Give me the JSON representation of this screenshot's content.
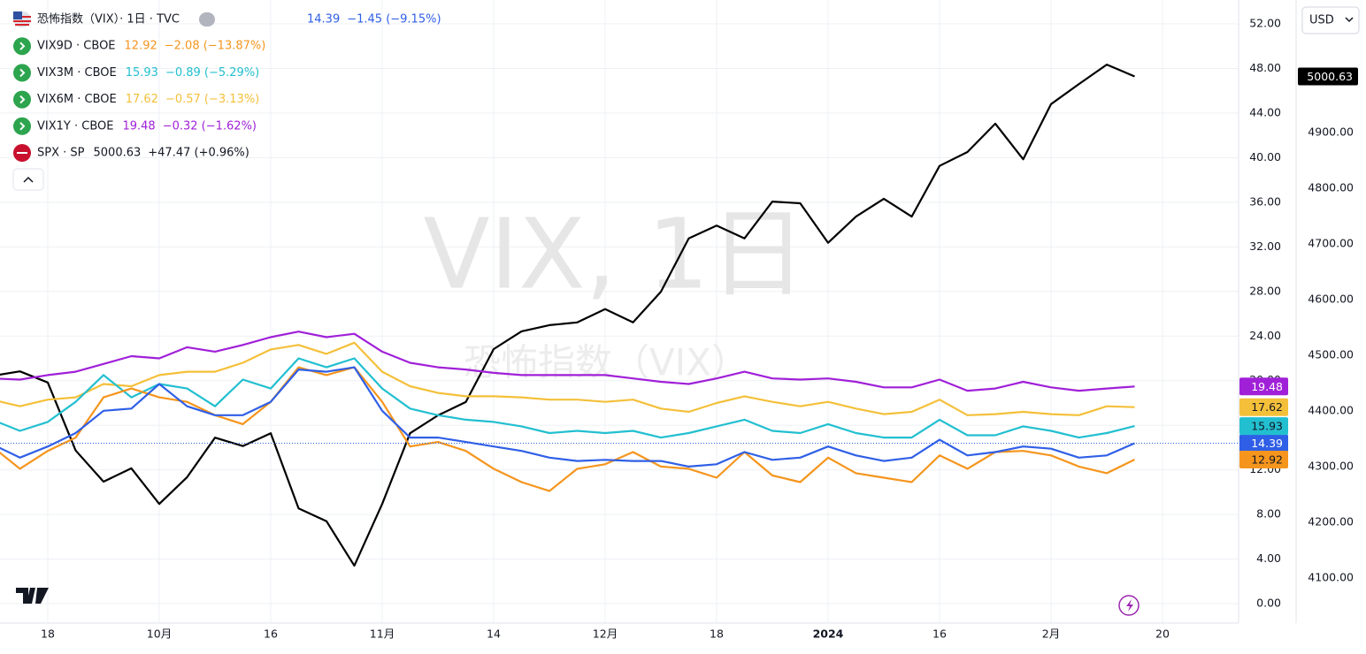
{
  "chart_data": {
    "type": "line",
    "watermark": "VIX, 1日",
    "watermark_subtitle": "恐怖指数（VIX）",
    "currency": "USD",
    "categories": [
      null,
      null,
      "18",
      null,
      null,
      null,
      "10月",
      null,
      null,
      null,
      "16",
      null,
      null,
      null,
      "11月",
      null,
      null,
      null,
      "14",
      null,
      null,
      null,
      "12月",
      null,
      null,
      null,
      "18",
      null,
      null,
      null,
      "2024",
      null,
      null,
      null,
      "16",
      null,
      null,
      null,
      "2月",
      null,
      null,
      null,
      "20"
    ],
    "ylim": [
      -1.74,
      54.14
    ],
    "yticks": [
      {
        "value": 0,
        "label": "0.00"
      },
      {
        "value": 4,
        "label": "4.00"
      },
      {
        "value": 8,
        "label": "8.00"
      },
      {
        "value": 12,
        "label": "12.00"
      },
      {
        "value": 16,
        "label": "16.00"
      },
      {
        "value": 20,
        "label": "20.00"
      },
      {
        "value": 24,
        "label": "24.00"
      },
      {
        "value": 28,
        "label": "28.00"
      },
      {
        "value": 32,
        "label": "32.00"
      },
      {
        "value": 36,
        "label": "36.00"
      },
      {
        "value": 40,
        "label": "40.00"
      },
      {
        "value": 44,
        "label": "44.00"
      },
      {
        "value": 48,
        "label": "48.00"
      },
      {
        "value": 52,
        "label": "52.00"
      }
    ],
    "y2lim": [
      4019,
      5138
    ],
    "y2ticks": [
      {
        "value": 4100,
        "label": "4100.00"
      },
      {
        "value": 4200,
        "label": "4200.00"
      },
      {
        "value": 4300,
        "label": "4300.00"
      },
      {
        "value": 4400,
        "label": "4400.00"
      },
      {
        "value": 4500,
        "label": "4500.00"
      },
      {
        "value": 4600,
        "label": "4600.00"
      },
      {
        "value": 4700,
        "label": "4700.00"
      },
      {
        "value": 4800,
        "label": "4800.00"
      },
      {
        "value": 4900,
        "label": "4900.00"
      }
    ],
    "grid": true,
    "series": [
      {
        "name": "恐怖指数（VIX）· 1日 · TVC",
        "color": "#2f5fe6",
        "last_label": "14.39",
        "change": "−1.45 (−9.15%)",
        "values": [
          14.3,
          13.1,
          14.1,
          15.3,
          17.3,
          17.5,
          19.7,
          17.7,
          16.9,
          16.9,
          18.1,
          21.0,
          20.8,
          21.2,
          17.3,
          14.9,
          14.9,
          14.5,
          14.1,
          13.7,
          13.1,
          12.8,
          12.9,
          12.8,
          12.8,
          12.3,
          12.5,
          13.6,
          12.9,
          13.1,
          14.1,
          13.3,
          12.8,
          13.1,
          14.7,
          13.3,
          13.6,
          14.1,
          13.9,
          13.1,
          13.3,
          14.39,
          null
        ]
      },
      {
        "name": "VIX9D · CBOE",
        "color": "#f5951d",
        "last_label": "12.92",
        "change": "−2.08 (−13.87%)",
        "values": [
          14.1,
          12.1,
          13.7,
          14.9,
          18.5,
          19.3,
          18.5,
          18.1,
          16.9,
          16.1,
          18.1,
          21.2,
          20.5,
          21.2,
          18.1,
          14.1,
          14.5,
          13.7,
          12.1,
          10.9,
          10.1,
          12.1,
          12.5,
          13.6,
          12.3,
          12.1,
          11.3,
          13.6,
          11.5,
          10.9,
          13.1,
          11.7,
          11.3,
          10.9,
          13.3,
          12.1,
          13.6,
          13.7,
          13.3,
          12.3,
          11.7,
          12.92,
          null
        ]
      },
      {
        "name": "VIX3M · CBOE",
        "color": "#22bfd0",
        "last_label": "15.93",
        "change": "−0.89 (−5.29%)",
        "values": [
          16.5,
          15.5,
          16.3,
          18.1,
          20.5,
          18.5,
          19.7,
          19.3,
          17.7,
          20.1,
          19.3,
          22.0,
          21.2,
          22.0,
          19.3,
          17.5,
          16.9,
          16.5,
          16.3,
          15.9,
          15.3,
          15.5,
          15.3,
          15.5,
          14.9,
          15.3,
          15.9,
          16.5,
          15.5,
          15.3,
          16.1,
          15.3,
          14.9,
          14.9,
          16.5,
          15.1,
          15.1,
          15.9,
          15.5,
          14.9,
          15.3,
          15.93,
          null
        ]
      },
      {
        "name": "VIX6M · CBOE",
        "color": "#f4c03a",
        "last_label": "17.62",
        "change": "−0.57 (−3.13%)",
        "values": [
          18.3,
          17.7,
          18.3,
          18.5,
          19.7,
          19.5,
          20.5,
          20.8,
          20.8,
          21.6,
          22.8,
          23.2,
          22.4,
          23.4,
          20.8,
          19.5,
          18.9,
          18.6,
          18.6,
          18.5,
          18.3,
          18.3,
          18.1,
          18.3,
          17.5,
          17.2,
          18.0,
          18.6,
          18.1,
          17.7,
          18.1,
          17.5,
          17.0,
          17.2,
          18.3,
          16.9,
          17.0,
          17.2,
          17.0,
          16.9,
          17.7,
          17.62,
          null
        ]
      },
      {
        "name": "VIX1Y · CBOE",
        "color": "#a020d8",
        "last_label": "19.48",
        "change": "−0.32 (−1.62%)",
        "values": [
          20.2,
          20.1,
          20.5,
          20.8,
          21.5,
          22.2,
          22.0,
          23.0,
          22.6,
          23.2,
          23.9,
          24.4,
          23.9,
          24.2,
          22.6,
          21.6,
          21.2,
          21.0,
          20.7,
          20.5,
          20.5,
          20.5,
          20.5,
          20.2,
          19.9,
          19.7,
          20.2,
          20.8,
          20.2,
          20.1,
          20.2,
          19.9,
          19.4,
          19.4,
          20.1,
          19.1,
          19.3,
          19.9,
          19.4,
          19.1,
          19.3,
          19.48,
          null
        ]
      },
      {
        "name": "SPX · SP",
        "color": "#000000",
        "axis": "y2",
        "last_label": "5000.63",
        "change": "+47.47 (+0.96%)",
        "values": [
          4463,
          4471,
          4451,
          4329,
          4273,
          4297,
          4233,
          4281,
          4352,
          4337,
          4360,
          4225,
          4202,
          4122,
          4233,
          4360,
          4392,
          4416,
          4511,
          4543,
          4554,
          4559,
          4583,
          4559,
          4614,
          4710,
          4733,
          4710,
          4776,
          4773,
          4702,
          4749,
          4781,
          4749,
          4840,
          4865,
          4916,
          4852,
          4951,
          4987,
          5022,
          5000.63,
          null
        ]
      }
    ]
  }
}
